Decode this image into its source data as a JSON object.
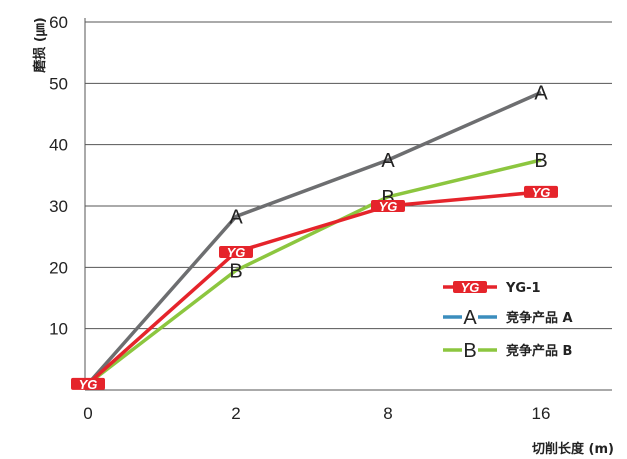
{
  "chart_data": {
    "type": "line",
    "categories": [
      "0",
      "2",
      "8",
      "16"
    ],
    "xlabel": "切削长度 (m)",
    "ylabel": "磨损 (㎛)",
    "ylim": [
      0,
      60
    ],
    "yticks": [
      10,
      20,
      30,
      40,
      50,
      60
    ],
    "grid": "horizontal",
    "legend_position": "bottom-right",
    "series": [
      {
        "name": "YG-1",
        "marker": "YG",
        "values": [
          1,
          22.5,
          30,
          32.3
        ],
        "color": "#e5242b"
      },
      {
        "name": "竞争产品 A",
        "marker": "A",
        "values": [
          1,
          28.3,
          37.5,
          48.5
        ],
        "color": "#6d6e70",
        "legend_color": "#3b8dbd"
      },
      {
        "name": "竞争产品 B",
        "marker": "B",
        "values": [
          1,
          19.5,
          31.5,
          37.5
        ],
        "color": "#8cc63f"
      }
    ],
    "marker_labels": [
      "A",
      "B"
    ],
    "yg_marker_text": "YG"
  }
}
